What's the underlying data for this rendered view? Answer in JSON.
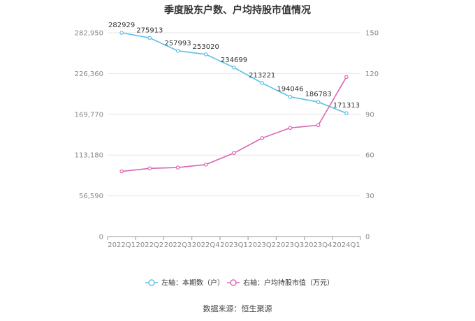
{
  "chart_data": {
    "type": "line",
    "title": "季度股东户数、户均持股市值情况",
    "categories": [
      "2022Q1",
      "2022Q2",
      "2022Q3",
      "2022Q4",
      "2023Q1",
      "2023Q2",
      "2023Q3",
      "2023Q4",
      "2024Q1"
    ],
    "left_axis": {
      "ticks": [
        "0",
        "56,590",
        "113,180",
        "169,770",
        "226,360",
        "282,950"
      ],
      "ylim": [
        0,
        282950
      ]
    },
    "right_axis": {
      "ticks": [
        "0",
        "30",
        "60",
        "90",
        "120",
        "150"
      ],
      "ylim": [
        0,
        150
      ]
    },
    "series": [
      {
        "name": "左轴：本期数（户）",
        "axis": "left",
        "color": "#5bc0eb",
        "values": [
          282929,
          275913,
          257993,
          253020,
          234699,
          213221,
          194046,
          186783,
          171313
        ],
        "labels": [
          "282929",
          "275913",
          "257993",
          "253020",
          "234699",
          "213221",
          "194046",
          "186783",
          "171313"
        ]
      },
      {
        "name": "右轴：户均持股市值（万元）",
        "axis": "right",
        "color": "#d966b3",
        "values": [
          48.0,
          50.2,
          50.8,
          53.0,
          61.5,
          72.5,
          80.0,
          82.0,
          117.5
        ]
      }
    ],
    "grid": true,
    "legend_position": "bottom"
  },
  "source": "数据来源：恒生聚源"
}
